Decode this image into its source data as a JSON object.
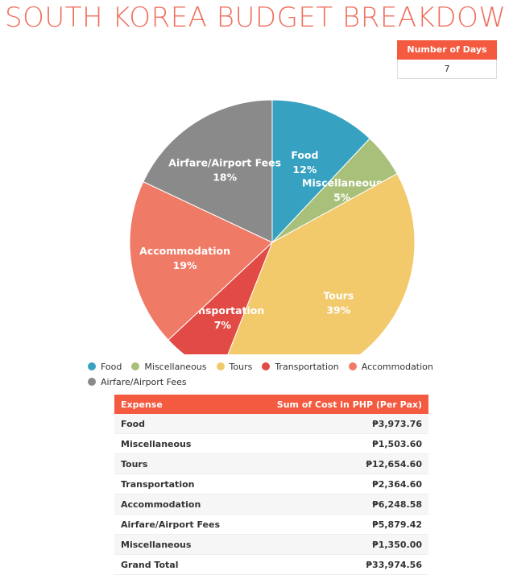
{
  "title": "SOUTH KOREA BUDGET BREAKDOWN",
  "days": {
    "label": "Number of Days",
    "value": "7"
  },
  "chart_data": {
    "type": "pie",
    "slices": [
      {
        "name": "Food",
        "percent": 12,
        "label": "12%",
        "color": "#37a1c1"
      },
      {
        "name": "Miscellaneous",
        "percent": 5,
        "label": "5%",
        "color": "#a8c07a"
      },
      {
        "name": "Tours",
        "percent": 39,
        "label": "39%",
        "color": "#f2c96b"
      },
      {
        "name": "Transportation",
        "percent": 7,
        "label": "7%",
        "color": "#e24a45"
      },
      {
        "name": "Accommodation",
        "percent": 19,
        "label": "19%",
        "color": "#ef7a66"
      },
      {
        "name": "Airfare/Airport Fees",
        "percent": 18,
        "label": "18%",
        "color": "#8a8a8a"
      }
    ],
    "legend_placement": "bottom"
  },
  "table": {
    "headers": [
      "Expense",
      "Sum of Cost in PHP (Per Pax)"
    ],
    "rows": [
      [
        "Food",
        "₱3,973.76"
      ],
      [
        "Miscellaneous",
        "₱1,503.60"
      ],
      [
        "Tours",
        "₱12,654.60"
      ],
      [
        "Transportation",
        "₱2,364.60"
      ],
      [
        "Accommodation",
        "₱6,248.58"
      ],
      [
        "Airfare/Airport Fees",
        "₱5,879.42"
      ],
      [
        "Miscellaneous",
        "₱1,350.00"
      ],
      [
        "Grand Total",
        "₱33,974.56"
      ]
    ]
  }
}
